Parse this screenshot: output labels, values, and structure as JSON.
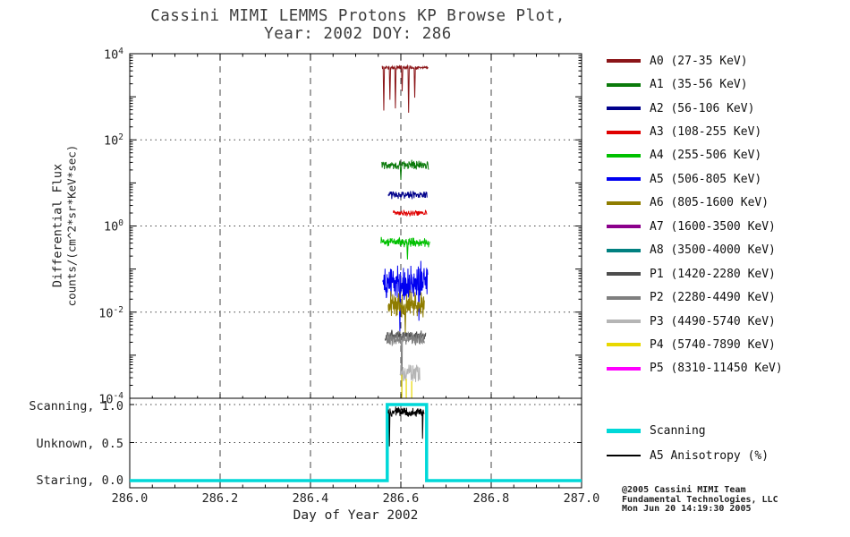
{
  "labels": {
    "title_line1": "Cassini MIMI LEMMS Protons KP Browse Plot,",
    "title_line2": "Year: 2002 DOY: 286",
    "xlabel": "Day of Year 2002",
    "ylabel_line1": "Differential Flux",
    "ylabel_line2": "counts/(cm^2*sr*KeV*sec)",
    "x_ticks": [
      "286.0",
      "286.2",
      "286.4",
      "286.6",
      "286.8",
      "287.0"
    ],
    "y_base": "10",
    "y_exponents": [
      "4",
      "2",
      "0",
      "-2",
      "-4"
    ],
    "lower_y_labels": [
      "Scanning, 1.0",
      "Unknown, 0.5",
      "Staring, 0.0"
    ],
    "copyright_line1": "@2005 Cassini MIMI Team",
    "copyright_line2": "Fundamental Technologies, LLC",
    "copyright_line3": "Mon Jun 20 14:19:30 2005"
  },
  "chart_data": {
    "type": "line",
    "title": "Cassini MIMI LEMMS Protons KP Browse Plot, Year: 2002 DOY: 286",
    "xlabel": "Day of Year 2002",
    "ylabel": "Differential Flux counts/(cm^2*sr*KeV*sec)",
    "xlim": [
      286.0,
      287.0
    ],
    "x_major_ticks": [
      286.0,
      286.2,
      286.4,
      286.6,
      286.8,
      287.0
    ],
    "x_minor_step": 0.05,
    "main_panel": {
      "yscale": "log",
      "ylim_log10": [
        -4,
        4
      ],
      "y_tick_exponents": [
        4,
        2,
        0,
        -2,
        -4
      ],
      "grid_x_dashed": [
        286.2,
        286.4,
        286.6,
        286.8
      ],
      "grid_y_dotted_log10": [
        2,
        0,
        -2
      ],
      "series": [
        {
          "name": "A0",
          "label": "A0 (27-35 KeV)",
          "color": "#8b1518",
          "draw": "noisy",
          "x_start": 286.558,
          "x_end": 286.66,
          "log10_level": 3.68,
          "noise_dex": 0.05,
          "spikes": [
            {
              "x": 286.562,
              "depth": 1.0
            },
            {
              "x": 286.576,
              "depth": 0.75
            },
            {
              "x": 286.588,
              "depth": 0.95
            },
            {
              "x": 286.603,
              "depth": 0.55
            },
            {
              "x": 286.617,
              "depth": 1.05
            },
            {
              "x": 286.631,
              "depth": 0.7
            }
          ]
        },
        {
          "name": "A1",
          "label": "A1 (35-56 KeV)",
          "color": "#0a7a0a",
          "draw": "noisy",
          "x_start": 286.558,
          "x_end": 286.662,
          "log10_level": 1.42,
          "noise_dex": 0.12,
          "spikes": [
            {
              "x": 286.6,
              "depth": 0.35
            }
          ]
        },
        {
          "name": "A2",
          "label": "A2 (56-106 KeV)",
          "color": "#00008b",
          "draw": "noisy",
          "x_start": 286.572,
          "x_end": 286.658,
          "log10_level": 0.72,
          "noise_dex": 0.1,
          "spikes": []
        },
        {
          "name": "A3",
          "label": "A3 (108-255 KeV)",
          "color": "#e00000",
          "draw": "noisy",
          "x_start": 286.583,
          "x_end": 286.658,
          "log10_level": 0.3,
          "noise_dex": 0.08,
          "spikes": []
        },
        {
          "name": "A4",
          "label": "A4 (255-506 KeV)",
          "color": "#00c000",
          "draw": "noisy",
          "x_start": 286.556,
          "x_end": 286.664,
          "log10_level": -0.38,
          "noise_dex": 0.13,
          "spikes": [
            {
              "x": 286.615,
              "depth": 0.4
            }
          ]
        },
        {
          "name": "A5",
          "label": "A5 (506-805 KeV)",
          "color": "#0000f0",
          "draw": "noisy",
          "x_start": 286.56,
          "x_end": 286.66,
          "log10_level": -1.3,
          "noise_dex": 0.5,
          "spikes": [
            {
              "x": 286.598,
              "depth": 1.15
            },
            {
              "x": 286.64,
              "depth": 0.9
            }
          ]
        },
        {
          "name": "A6",
          "label": "A6 (805-1600 KeV)",
          "color": "#8f7d00",
          "draw": "noisy",
          "x_start": 286.572,
          "x_end": 286.652,
          "log10_level": -1.8,
          "noise_dex": 0.35,
          "spikes": [
            {
              "x": 286.61,
              "depth": 0.7
            }
          ]
        },
        {
          "name": "A7",
          "label": "A7 (1600-3500 KeV)",
          "color": "#8b008b",
          "draw": "none"
        },
        {
          "name": "A8",
          "label": "A8 (3500-4000 KeV)",
          "color": "#008080",
          "draw": "none"
        },
        {
          "name": "P1",
          "label": "P1 (1420-2280 KeV)",
          "color": "#4d4d4d",
          "draw": "noisy",
          "x_start": 286.565,
          "x_end": 286.655,
          "log10_level": -2.55,
          "noise_dex": 0.14,
          "spikes": []
        },
        {
          "name": "P2",
          "label": "P2 (2280-4490 KeV)",
          "color": "#7f7f7f",
          "draw": "noisy",
          "x_start": 286.568,
          "x_end": 286.652,
          "log10_level": -2.62,
          "noise_dex": 0.18,
          "spikes": [
            {
              "x": 286.602,
              "depth": 1.35
            }
          ]
        },
        {
          "name": "P3",
          "label": "P3 (4490-5740 KeV)",
          "color": "#b5b5b5",
          "draw": "noisy",
          "x_start": 286.598,
          "x_end": 286.642,
          "log10_level": -3.4,
          "noise_dex": 0.28,
          "spikes": []
        },
        {
          "name": "P4",
          "label": "P4 (5740-7890 KeV)",
          "color": "#e8d800",
          "draw": "vspikes",
          "vspikes": [
            {
              "x": 286.602,
              "from": -4.0,
              "to": -3.45
            },
            {
              "x": 286.612,
              "from": -4.0,
              "to": -3.55
            },
            {
              "x": 286.624,
              "from": -4.0,
              "to": -3.6
            }
          ]
        },
        {
          "name": "P5",
          "label": "P5 (8310-11450 KeV)",
          "color": "#ff00ff",
          "draw": "none"
        }
      ]
    },
    "lower_panel": {
      "ylim": [
        0,
        1
      ],
      "y_ticks": [
        0,
        0.5,
        1.0
      ],
      "y_tick_labels": [
        "Staring, 0.0",
        "Unknown, 0.5",
        "Scanning, 1.0"
      ],
      "grid_y_dotted": [
        0.5,
        1.0
      ],
      "scanning": {
        "name": "scanning",
        "label": "Scanning",
        "color": "#00d8d8",
        "width": 3.5,
        "steps": [
          {
            "x": 286.0,
            "v": 0
          },
          {
            "x": 286.57,
            "v": 1
          },
          {
            "x": 286.657,
            "v": 0
          },
          {
            "x": 287.0,
            "v": 0
          }
        ]
      },
      "anisotropy": {
        "name": "a5-anisotropy",
        "label": "A5 Anisotropy (%)",
        "color": "#000000",
        "x_start": 286.572,
        "x_end": 286.652,
        "level": 0.9,
        "noise": 0.08,
        "spikes": [
          {
            "x": 286.575,
            "depth": 0.45
          },
          {
            "x": 286.648,
            "depth": 0.35
          }
        ]
      },
      "legend": [
        {
          "name": "scanning",
          "label": "Scanning",
          "color": "#00d8d8",
          "thickness": 5
        },
        {
          "name": "a5-anisotropy",
          "label": "A5 Anisotropy (%)",
          "color": "#000000",
          "thickness": 2
        }
      ]
    },
    "credit": [
      "@2005 Cassini MIMI Team",
      "Fundamental Technologies, LLC",
      "Mon Jun 20 14:19:30 2005"
    ]
  }
}
